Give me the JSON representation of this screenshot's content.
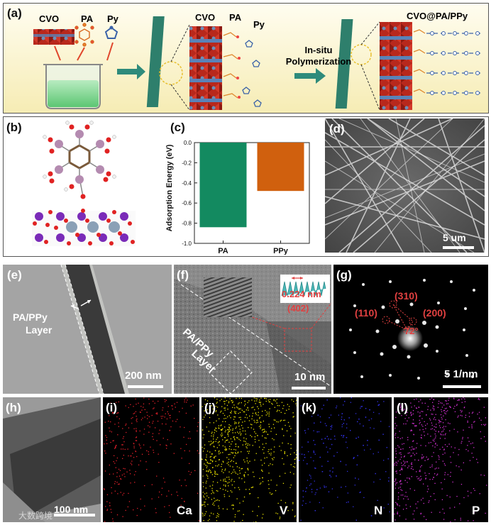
{
  "panel_a": {
    "label": "(a)",
    "cvo": "CVO",
    "pa": "PA",
    "py": "Py",
    "cvo_mid": "CVO",
    "pa_mid": "PA",
    "py_mid": "Py",
    "step_line1": "In-situ",
    "step_line2": "Polymerization",
    "product": "CVO@PA/PPy",
    "colors": {
      "background_top": "#fffbe6",
      "background_bottom": "#f6ecb4",
      "arrow": "#2e8b7b"
    }
  },
  "panel_b": {
    "label": "(b)"
  },
  "panel_c": {
    "label": "(c)"
  },
  "panel_d": {
    "label": "(d)",
    "scale": "5 um"
  },
  "panel_e": {
    "label": "(e)",
    "layer_line1": "PA/PPy",
    "layer_line2": "Layer",
    "scale": "200 nm"
  },
  "panel_f": {
    "label": "(f)",
    "spacing": "0.224 nm",
    "plane": "(402)",
    "layer_line1": "PA/PPy",
    "layer_line2": "Layer",
    "scale": "10 nm"
  },
  "panel_g": {
    "label": "(g)",
    "spot1": "(310)",
    "spot2": "(110)",
    "spot3": "(200)",
    "angle": "72°",
    "scale": "5 1/nm"
  },
  "panel_h": {
    "label": "(h)",
    "scale": "100 nm",
    "watermark": "大数跨境"
  },
  "panel_i": {
    "label": "(i)",
    "element": "Ca",
    "color": "#e0202a"
  },
  "panel_j": {
    "label": "(j)",
    "element": "V",
    "color": "#e8e000"
  },
  "panel_k": {
    "label": "(k)",
    "element": "N",
    "color": "#3030e0"
  },
  "panel_l": {
    "label": "(l)",
    "element": "P",
    "color": "#d030d0"
  },
  "chart_data": {
    "type": "bar",
    "ylabel": "Adsorption Energy (eV)",
    "categories": [
      "PA",
      "PPy"
    ],
    "values": [
      -0.84,
      -0.48
    ],
    "colors": [
      "#138a60",
      "#d0600e"
    ],
    "ylim": [
      0,
      -1.0
    ],
    "yticks": [
      "0.0",
      "-0.2",
      "-0.4",
      "-0.6",
      "-0.8",
      "-1.0"
    ],
    "grid": false,
    "inverted_y": true
  }
}
